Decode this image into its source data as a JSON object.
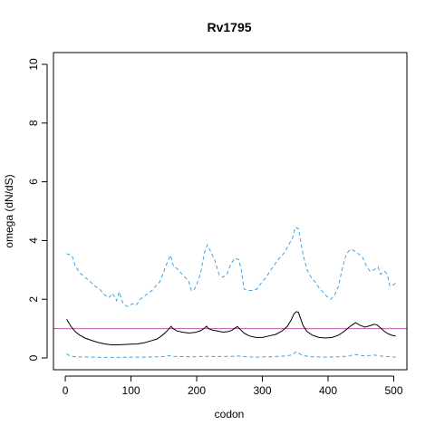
{
  "chart_data": {
    "type": "line",
    "title": "Rv1795",
    "xlabel": "codon",
    "ylabel": "omega (dN/dS)",
    "xlim": [
      -18,
      520
    ],
    "ylim": [
      -0.4,
      10.4
    ],
    "x_ticks": [
      0,
      100,
      200,
      300,
      400,
      500
    ],
    "x_tick_labels": [
      "0",
      "100",
      "200",
      "300",
      "400",
      "500"
    ],
    "y_ticks": [
      0,
      2,
      4,
      6,
      8,
      10
    ],
    "y_tick_labels": [
      "0",
      "2",
      "4",
      "6",
      "8",
      "10"
    ],
    "grid": false,
    "reference_line": {
      "y": 1,
      "color": "#c05aa8"
    },
    "series": [
      {
        "style": "dashed",
        "color": "#3fa4e0",
        "points": [
          [
            2,
            3.55
          ],
          [
            10,
            3.5
          ],
          [
            15,
            3.15
          ],
          [
            22,
            2.9
          ],
          [
            30,
            2.75
          ],
          [
            38,
            2.6
          ],
          [
            45,
            2.45
          ],
          [
            52,
            2.35
          ],
          [
            60,
            2.15
          ],
          [
            66,
            2.05
          ],
          [
            72,
            2.2
          ],
          [
            78,
            1.95
          ],
          [
            82,
            2.25
          ],
          [
            88,
            1.85
          ],
          [
            95,
            1.75
          ],
          [
            102,
            1.85
          ],
          [
            108,
            1.8
          ],
          [
            114,
            2.0
          ],
          [
            120,
            2.1
          ],
          [
            126,
            2.2
          ],
          [
            132,
            2.3
          ],
          [
            138,
            2.45
          ],
          [
            144,
            2.6
          ],
          [
            150,
            2.95
          ],
          [
            156,
            3.3
          ],
          [
            160,
            3.5
          ],
          [
            165,
            3.1
          ],
          [
            170,
            3.05
          ],
          [
            176,
            2.9
          ],
          [
            182,
            2.75
          ],
          [
            188,
            2.6
          ],
          [
            192,
            2.3
          ],
          [
            196,
            2.3
          ],
          [
            200,
            2.5
          ],
          [
            206,
            2.9
          ],
          [
            212,
            3.6
          ],
          [
            216,
            3.85
          ],
          [
            222,
            3.6
          ],
          [
            228,
            3.3
          ],
          [
            234,
            2.85
          ],
          [
            240,
            2.75
          ],
          [
            246,
            2.85
          ],
          [
            252,
            3.2
          ],
          [
            258,
            3.4
          ],
          [
            264,
            3.35
          ],
          [
            268,
            3.0
          ],
          [
            272,
            2.35
          ],
          [
            278,
            2.3
          ],
          [
            286,
            2.3
          ],
          [
            292,
            2.35
          ],
          [
            298,
            2.55
          ],
          [
            304,
            2.7
          ],
          [
            310,
            2.9
          ],
          [
            316,
            3.1
          ],
          [
            322,
            3.3
          ],
          [
            328,
            3.45
          ],
          [
            334,
            3.6
          ],
          [
            340,
            3.85
          ],
          [
            346,
            4.1
          ],
          [
            350,
            4.45
          ],
          [
            355,
            4.4
          ],
          [
            358,
            4.0
          ],
          [
            362,
            3.5
          ],
          [
            368,
            3.0
          ],
          [
            374,
            2.75
          ],
          [
            380,
            2.6
          ],
          [
            386,
            2.4
          ],
          [
            392,
            2.25
          ],
          [
            398,
            2.1
          ],
          [
            404,
            2.0
          ],
          [
            410,
            2.15
          ],
          [
            416,
            2.45
          ],
          [
            422,
            3.1
          ],
          [
            428,
            3.55
          ],
          [
            434,
            3.7
          ],
          [
            440,
            3.65
          ],
          [
            446,
            3.55
          ],
          [
            452,
            3.45
          ],
          [
            458,
            3.15
          ],
          [
            464,
            2.95
          ],
          [
            470,
            3.0
          ],
          [
            476,
            3.1
          ],
          [
            480,
            2.85
          ],
          [
            486,
            2.95
          ],
          [
            490,
            2.85
          ],
          [
            494,
            2.45
          ],
          [
            500,
            2.5
          ],
          [
            503,
            2.55
          ]
        ]
      },
      {
        "style": "solid",
        "color": "#000000",
        "points": [
          [
            2,
            1.32
          ],
          [
            8,
            1.1
          ],
          [
            15,
            0.9
          ],
          [
            22,
            0.78
          ],
          [
            30,
            0.68
          ],
          [
            40,
            0.6
          ],
          [
            50,
            0.53
          ],
          [
            60,
            0.48
          ],
          [
            70,
            0.45
          ],
          [
            80,
            0.45
          ],
          [
            90,
            0.46
          ],
          [
            100,
            0.47
          ],
          [
            110,
            0.48
          ],
          [
            120,
            0.52
          ],
          [
            130,
            0.58
          ],
          [
            140,
            0.65
          ],
          [
            148,
            0.78
          ],
          [
            154,
            0.9
          ],
          [
            158,
            1.0
          ],
          [
            161,
            1.08
          ],
          [
            164,
            1.0
          ],
          [
            170,
            0.92
          ],
          [
            178,
            0.88
          ],
          [
            188,
            0.85
          ],
          [
            198,
            0.87
          ],
          [
            206,
            0.93
          ],
          [
            212,
            1.02
          ],
          [
            215,
            1.08
          ],
          [
            218,
            1.0
          ],
          [
            224,
            0.95
          ],
          [
            232,
            0.92
          ],
          [
            240,
            0.88
          ],
          [
            248,
            0.9
          ],
          [
            254,
            0.95
          ],
          [
            258,
            1.02
          ],
          [
            262,
            1.07
          ],
          [
            266,
            0.98
          ],
          [
            272,
            0.85
          ],
          [
            280,
            0.75
          ],
          [
            290,
            0.7
          ],
          [
            300,
            0.7
          ],
          [
            310,
            0.75
          ],
          [
            320,
            0.8
          ],
          [
            330,
            0.92
          ],
          [
            338,
            1.08
          ],
          [
            344,
            1.3
          ],
          [
            348,
            1.5
          ],
          [
            352,
            1.58
          ],
          [
            355,
            1.55
          ],
          [
            358,
            1.35
          ],
          [
            362,
            1.1
          ],
          [
            368,
            0.9
          ],
          [
            376,
            0.78
          ],
          [
            386,
            0.7
          ],
          [
            396,
            0.68
          ],
          [
            406,
            0.7
          ],
          [
            416,
            0.78
          ],
          [
            424,
            0.9
          ],
          [
            432,
            1.05
          ],
          [
            438,
            1.15
          ],
          [
            442,
            1.2
          ],
          [
            448,
            1.12
          ],
          [
            456,
            1.05
          ],
          [
            464,
            1.1
          ],
          [
            470,
            1.15
          ],
          [
            475,
            1.12
          ],
          [
            480,
            1.02
          ],
          [
            486,
            0.9
          ],
          [
            492,
            0.82
          ],
          [
            498,
            0.77
          ],
          [
            503,
            0.75
          ]
        ]
      },
      {
        "style": "dashed",
        "color": "#3fa4e0",
        "points": [
          [
            2,
            0.15
          ],
          [
            6,
            0.08
          ],
          [
            12,
            0.05
          ],
          [
            20,
            0.04
          ],
          [
            40,
            0.03
          ],
          [
            60,
            0.02
          ],
          [
            80,
            0.02
          ],
          [
            100,
            0.03
          ],
          [
            120,
            0.03
          ],
          [
            140,
            0.04
          ],
          [
            150,
            0.05
          ],
          [
            158,
            0.08
          ],
          [
            162,
            0.06
          ],
          [
            170,
            0.05
          ],
          [
            190,
            0.04
          ],
          [
            210,
            0.05
          ],
          [
            216,
            0.06
          ],
          [
            222,
            0.05
          ],
          [
            240,
            0.05
          ],
          [
            258,
            0.06
          ],
          [
            262,
            0.07
          ],
          [
            268,
            0.05
          ],
          [
            290,
            0.03
          ],
          [
            310,
            0.04
          ],
          [
            330,
            0.06
          ],
          [
            342,
            0.09
          ],
          [
            348,
            0.15
          ],
          [
            352,
            0.22
          ],
          [
            356,
            0.15
          ],
          [
            362,
            0.08
          ],
          [
            376,
            0.04
          ],
          [
            396,
            0.03
          ],
          [
            416,
            0.04
          ],
          [
            432,
            0.07
          ],
          [
            440,
            0.12
          ],
          [
            446,
            0.1
          ],
          [
            456,
            0.07
          ],
          [
            470,
            0.1
          ],
          [
            476,
            0.08
          ],
          [
            486,
            0.05
          ],
          [
            496,
            0.04
          ],
          [
            503,
            0.03
          ]
        ]
      }
    ]
  }
}
